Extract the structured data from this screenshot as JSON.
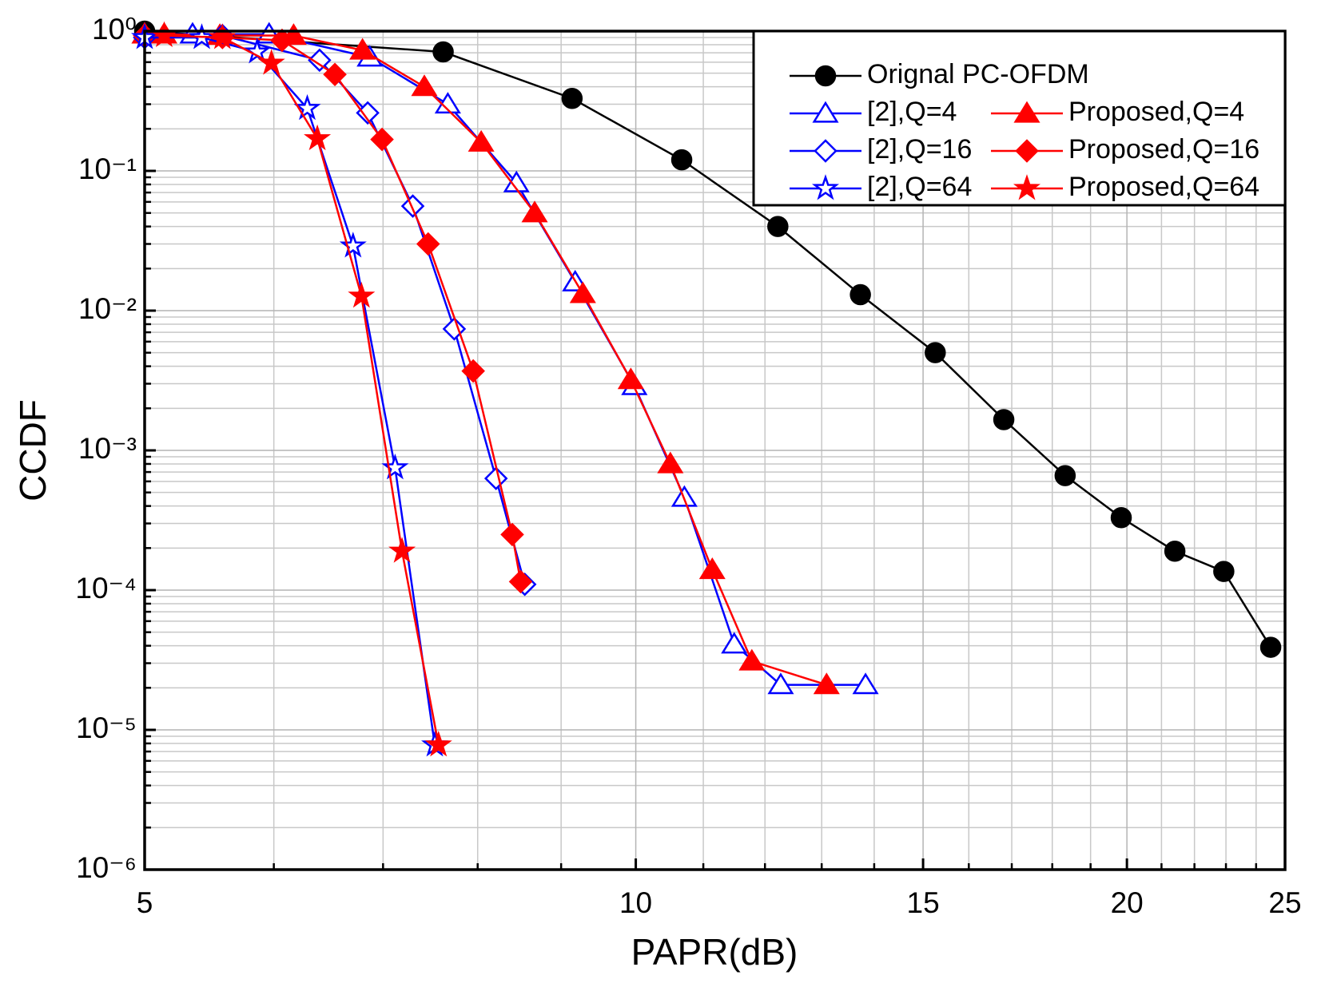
{
  "chart_data": {
    "type": "line",
    "x_label": "PAPR(dB)",
    "y_label": "CCDF",
    "xscale": "log",
    "yscale": "log",
    "grid": true,
    "legend": "upper right",
    "xlim": [
      5,
      25
    ],
    "ylim": [
      1e-06,
      1
    ],
    "xticks": [
      5,
      10,
      15,
      20,
      25
    ],
    "xminor": [
      6,
      7,
      8,
      9,
      11,
      12,
      13,
      14,
      16,
      17,
      18,
      19,
      21,
      22,
      23,
      24
    ],
    "yticks": [
      {
        "value": 1e-06,
        "label": "10⁻⁶"
      },
      {
        "value": 1e-05,
        "label": "10⁻⁵"
      },
      {
        "value": 0.0001,
        "label": "10⁻⁴"
      },
      {
        "value": 0.001,
        "label": "10⁻³"
      },
      {
        "value": 0.01,
        "label": "10⁻²"
      },
      {
        "value": 0.1,
        "label": "10⁻¹"
      },
      {
        "value": 1,
        "label": "10⁰"
      }
    ],
    "yminor": [
      2e-06,
      3e-06,
      4e-06,
      5e-06,
      6e-06,
      7e-06,
      8e-06,
      9e-06,
      2e-05,
      3e-05,
      4e-05,
      5e-05,
      6e-05,
      7e-05,
      8e-05,
      9e-05,
      0.0002,
      0.0003,
      0.0004,
      0.0005,
      0.0006,
      0.0007,
      0.0008,
      0.0009,
      0.002,
      0.003,
      0.004,
      0.005,
      0.006,
      0.007,
      0.008,
      0.009,
      0.02,
      0.03,
      0.04,
      0.05,
      0.06,
      0.07,
      0.08,
      0.09,
      0.2,
      0.3,
      0.4,
      0.5,
      0.6,
      0.7,
      0.8,
      0.9
    ],
    "series": [
      {
        "name": "Orignal PC-OFDM",
        "color": "#000000",
        "marker": "circle",
        "filled": true,
        "x": [
          5,
          7.62,
          9.14,
          10.67,
          12.22,
          13.73,
          15.26,
          16.81,
          18.33,
          19.84,
          21.4,
          22.93,
          24.5
        ],
        "values": [
          1,
          0.71,
          0.33,
          0.12,
          0.04,
          0.013,
          0.005,
          0.00166,
          0.00066,
          0.00033,
          0.00019,
          0.000136,
          3.9e-05
        ]
      },
      {
        "name": "[2],Q=4",
        "color": "#0000ff",
        "marker": "triangle",
        "filled": false,
        "x": [
          5,
          5.35,
          5.96,
          6.87,
          7.67,
          8.45,
          9.18,
          9.98,
          10.71,
          11.49,
          12.27,
          13.83
        ],
        "values": [
          0.95,
          0.95,
          0.95,
          0.65,
          0.3,
          0.082,
          0.016,
          0.0029,
          0.00046,
          4.1e-05,
          2.1e-05,
          2.1e-05
        ]
      },
      {
        "name": "Proposed,Q=4",
        "color": "#ff0000",
        "marker": "triangle",
        "filled": true,
        "x": [
          5,
          5.14,
          5.56,
          6.17,
          6.8,
          7.42,
          8.04,
          8.67,
          9.28,
          9.93,
          10.5,
          11.14,
          11.78,
          13.09
        ],
        "values": [
          0.95,
          0.95,
          0.93,
          0.93,
          0.73,
          0.4,
          0.16,
          0.05,
          0.0132,
          0.0032,
          0.0008,
          0.00014,
          3.1e-05,
          2.1e-05
        ]
      },
      {
        "name": "[2],Q=16",
        "color": "#0000ff",
        "marker": "diamond",
        "filled": false,
        "x": [
          5,
          5.58,
          6.4,
          6.85,
          7.3,
          7.74,
          8.21,
          8.55
        ],
        "values": [
          0.9,
          0.93,
          0.62,
          0.26,
          0.056,
          0.0074,
          0.00063,
          0.00011
        ]
      },
      {
        "name": "Proposed,Q=16",
        "color": "#ff0000",
        "marker": "diamond",
        "filled": true,
        "x": [
          5,
          5.58,
          6.07,
          6.54,
          6.99,
          7.46,
          7.95,
          8.4,
          8.5
        ],
        "values": [
          0.93,
          0.9,
          0.86,
          0.49,
          0.168,
          0.03,
          0.0037,
          0.00025,
          0.000115
        ]
      },
      {
        "name": "[2],Q=64",
        "color": "#0000ff",
        "marker": "star",
        "filled": false,
        "x": [
          5,
          5.42,
          5.86,
          6.29,
          6.71,
          7.12,
          7.53
        ],
        "values": [
          0.9,
          0.9,
          0.71,
          0.28,
          0.029,
          0.00075,
          7.8e-06
        ]
      },
      {
        "name": "Proposed,Q=64",
        "color": "#ff0000",
        "marker": "star",
        "filled": true,
        "x": [
          5.14,
          5.58,
          5.98,
          6.38,
          6.79,
          7.19,
          7.57
        ],
        "values": [
          0.93,
          0.9,
          0.59,
          0.17,
          0.0127,
          0.00019,
          7.8e-06
        ]
      }
    ]
  }
}
